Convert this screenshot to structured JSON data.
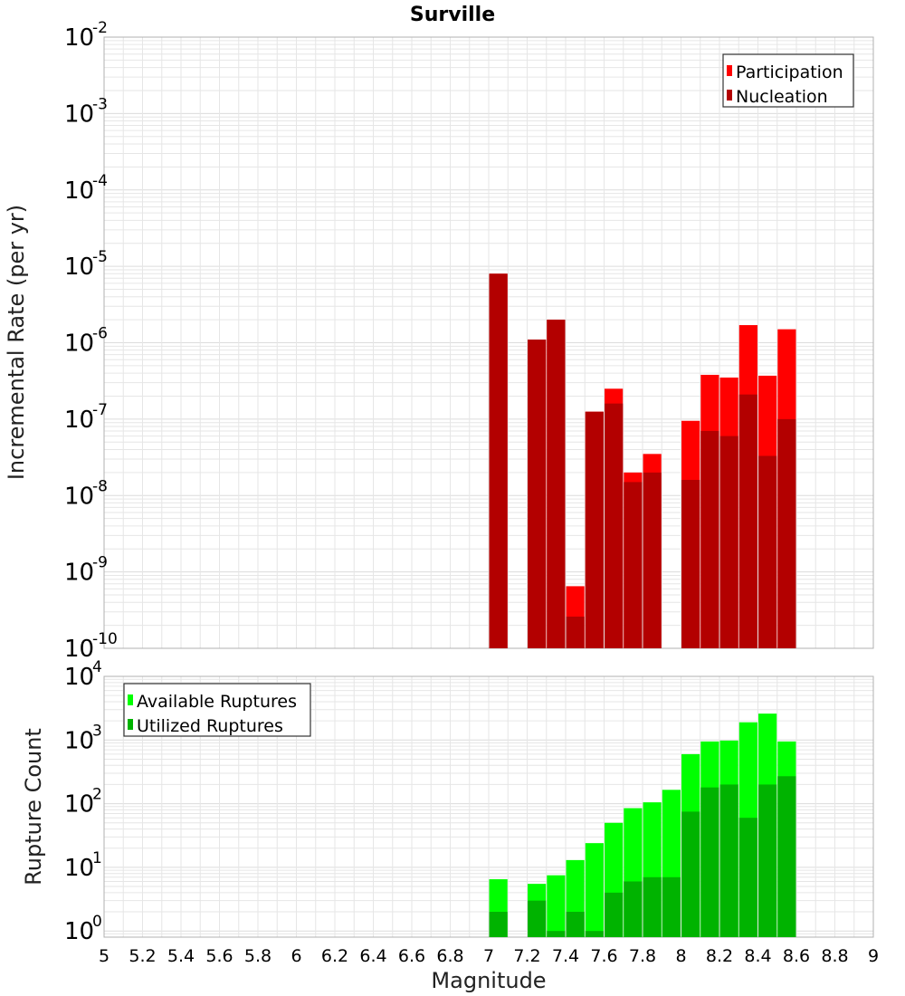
{
  "chart_data": [
    {
      "type": "bar",
      "title": "Surville",
      "xlabel": "Magnitude",
      "ylabel": "Incremental Rate (per yr)",
      "yscale": "log",
      "ylim": [
        1e-10,
        0.01
      ],
      "xlim": [
        5,
        9
      ],
      "grid": true,
      "legend_position": "top-right",
      "stacked_overlay": true,
      "x": [
        7.05,
        7.25,
        7.35,
        7.45,
        7.55,
        7.65,
        7.75,
        7.85,
        8.05,
        8.15,
        8.25,
        8.35,
        8.45,
        8.55
      ],
      "series": [
        {
          "name": "Participation",
          "color": "#ff0000",
          "values": [
            8e-06,
            1.1e-06,
            2e-06,
            6.5e-10,
            1.25e-07,
            2.5e-07,
            2e-08,
            3.5e-08,
            9.5e-08,
            3.8e-07,
            3.5e-07,
            1.7e-06,
            3.7e-07,
            1.5e-06
          ]
        },
        {
          "name": "Nucleation",
          "color": "#b30000",
          "values": [
            8e-06,
            1.1e-06,
            2e-06,
            2.6e-10,
            1.25e-07,
            1.6e-07,
            1.5e-08,
            2e-08,
            1.6e-08,
            7e-08,
            6e-08,
            2.1e-07,
            3.3e-08,
            1e-07
          ]
        }
      ]
    },
    {
      "type": "bar",
      "xlabel": "Magnitude",
      "ylabel": "Rupture Count",
      "yscale": "log",
      "ylim": [
        0.8,
        10000
      ],
      "xlim": [
        5,
        9
      ],
      "grid": true,
      "legend_position": "top-left",
      "stacked_overlay": true,
      "x": [
        7.05,
        7.25,
        7.35,
        7.45,
        7.55,
        7.65,
        7.75,
        7.85,
        7.95,
        8.05,
        8.15,
        8.25,
        8.35,
        8.45,
        8.55
      ],
      "series": [
        {
          "name": "Available Ruptures",
          "color": "#00ff00",
          "values": [
            6.5,
            5.5,
            7.5,
            13,
            24,
            50,
            85,
            105,
            165,
            600,
            950,
            980,
            1900,
            2600,
            950
          ]
        },
        {
          "name": "Utilized Ruptures",
          "color": "#00b300",
          "values": [
            2,
            3,
            1,
            2,
            1,
            4,
            6,
            7,
            7,
            75,
            180,
            200,
            60,
            200,
            270
          ]
        }
      ]
    }
  ],
  "x_ticks": [
    "5",
    "5.2",
    "5.4",
    "5.6",
    "5.8",
    "6",
    "6.2",
    "6.4",
    "6.6",
    "6.8",
    "7",
    "7.2",
    "7.4",
    "7.6",
    "7.8",
    "8",
    "8.2",
    "8.4",
    "8.6",
    "8.8",
    "9"
  ],
  "top_y_ticks": [
    {
      "base": "10",
      "exp": "-2"
    },
    {
      "base": "10",
      "exp": "-3"
    },
    {
      "base": "10",
      "exp": "-4"
    },
    {
      "base": "10",
      "exp": "-5"
    },
    {
      "base": "10",
      "exp": "-6"
    },
    {
      "base": "10",
      "exp": "-7"
    },
    {
      "base": "10",
      "exp": "-8"
    },
    {
      "base": "10",
      "exp": "-9"
    },
    {
      "base": "10",
      "exp": "-10"
    }
  ],
  "bottom_y_ticks": [
    {
      "base": "10",
      "exp": "4"
    },
    {
      "base": "10",
      "exp": "3"
    },
    {
      "base": "10",
      "exp": "2"
    },
    {
      "base": "10",
      "exp": "1"
    },
    {
      "base": "10",
      "exp": "0"
    }
  ],
  "colors": {
    "participation": "#ff0000",
    "nucleation": "#b30000",
    "available": "#00ff00",
    "utilized": "#00b300",
    "grid": "#e6e6e6",
    "frame": "#b0b0b0"
  }
}
